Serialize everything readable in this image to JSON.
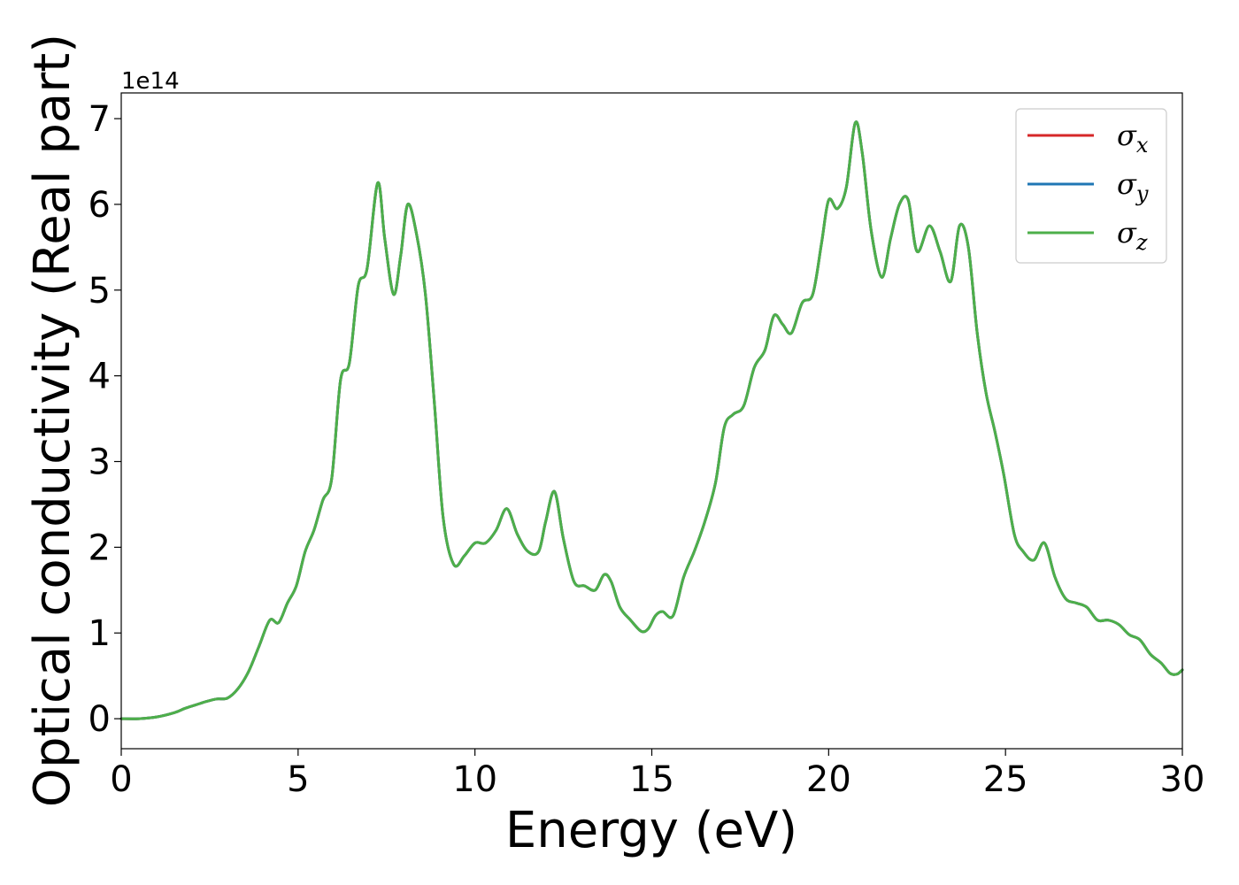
{
  "chart_data": {
    "type": "line",
    "title": "",
    "xlabel": "Energy (eV)",
    "ylabel": "Optical conductivity (Real part)",
    "y_offset_label": "1e14",
    "y_scale_factor": 100000000000000.0,
    "xlim": [
      0,
      30
    ],
    "ylim": [
      -0.35,
      7.3
    ],
    "xticks": [
      0,
      5,
      10,
      15,
      20,
      25,
      30
    ],
    "yticks": [
      0,
      1,
      2,
      3,
      4,
      5,
      6,
      7
    ],
    "grid": false,
    "legend_position": "top-right",
    "x": [
      0,
      0.5,
      1.0,
      1.5,
      1.8,
      2.1,
      2.4,
      2.7,
      3.0,
      3.3,
      3.6,
      3.9,
      4.2,
      4.45,
      4.7,
      4.95,
      5.2,
      5.45,
      5.7,
      5.95,
      6.2,
      6.45,
      6.7,
      6.95,
      7.25,
      7.45,
      7.7,
      7.9,
      8.1,
      8.35,
      8.6,
      8.85,
      9.1,
      9.4,
      9.7,
      10.0,
      10.3,
      10.6,
      10.9,
      11.2,
      11.5,
      11.8,
      12.0,
      12.25,
      12.5,
      12.8,
      13.1,
      13.4,
      13.65,
      13.85,
      14.1,
      14.4,
      14.7,
      14.9,
      15.1,
      15.3,
      15.6,
      15.9,
      16.2,
      16.5,
      16.8,
      17.05,
      17.3,
      17.6,
      17.9,
      18.2,
      18.45,
      18.7,
      18.95,
      19.25,
      19.55,
      19.8,
      20.0,
      20.25,
      20.5,
      20.75,
      20.95,
      21.2,
      21.5,
      21.75,
      22.0,
      22.25,
      22.5,
      22.85,
      23.15,
      23.45,
      23.7,
      23.95,
      24.2,
      24.45,
      24.7,
      24.95,
      25.25,
      25.5,
      25.8,
      26.1,
      26.4,
      26.7,
      27.0,
      27.3,
      27.6,
      27.9,
      28.2,
      28.5,
      28.8,
      29.1,
      29.4,
      29.65,
      29.85,
      30.0
    ],
    "series": [
      {
        "name": "σx",
        "color": "#d62728",
        "values": [
          0.0,
          0.0,
          0.02,
          0.07,
          0.12,
          0.16,
          0.2,
          0.23,
          0.24,
          0.35,
          0.55,
          0.85,
          1.15,
          1.12,
          1.35,
          1.55,
          1.95,
          2.2,
          2.55,
          2.8,
          3.95,
          4.15,
          5.05,
          5.25,
          6.25,
          5.6,
          4.95,
          5.4,
          6.0,
          5.65,
          4.95,
          3.7,
          2.35,
          1.8,
          1.9,
          2.05,
          2.05,
          2.2,
          2.45,
          2.15,
          1.95,
          1.95,
          2.3,
          2.65,
          2.1,
          1.6,
          1.55,
          1.5,
          1.68,
          1.6,
          1.3,
          1.15,
          1.02,
          1.05,
          1.2,
          1.25,
          1.2,
          1.65,
          1.95,
          2.3,
          2.75,
          3.4,
          3.55,
          3.65,
          4.1,
          4.3,
          4.7,
          4.6,
          4.5,
          4.85,
          4.95,
          5.55,
          6.05,
          5.95,
          6.2,
          6.95,
          6.6,
          5.7,
          5.15,
          5.6,
          6.0,
          6.05,
          5.45,
          5.75,
          5.45,
          5.1,
          5.75,
          5.5,
          4.5,
          3.8,
          3.35,
          2.85,
          2.15,
          1.95,
          1.85,
          2.05,
          1.65,
          1.4,
          1.35,
          1.3,
          1.15,
          1.15,
          1.1,
          0.98,
          0.92,
          0.75,
          0.65,
          0.53,
          0.52,
          0.57
        ]
      },
      {
        "name": "σy",
        "color": "#1f77b4",
        "values": [
          0.0,
          0.0,
          0.02,
          0.07,
          0.12,
          0.16,
          0.2,
          0.23,
          0.24,
          0.35,
          0.55,
          0.85,
          1.15,
          1.12,
          1.35,
          1.55,
          1.95,
          2.2,
          2.55,
          2.8,
          3.95,
          4.15,
          5.05,
          5.25,
          6.25,
          5.6,
          4.95,
          5.4,
          6.0,
          5.65,
          4.95,
          3.7,
          2.35,
          1.8,
          1.9,
          2.05,
          2.05,
          2.2,
          2.45,
          2.15,
          1.95,
          1.95,
          2.3,
          2.65,
          2.1,
          1.6,
          1.55,
          1.5,
          1.68,
          1.6,
          1.3,
          1.15,
          1.02,
          1.05,
          1.2,
          1.25,
          1.2,
          1.65,
          1.95,
          2.3,
          2.75,
          3.4,
          3.55,
          3.65,
          4.1,
          4.3,
          4.7,
          4.6,
          4.5,
          4.85,
          4.95,
          5.55,
          6.05,
          5.95,
          6.2,
          6.95,
          6.6,
          5.7,
          5.15,
          5.6,
          6.0,
          6.05,
          5.45,
          5.75,
          5.45,
          5.1,
          5.75,
          5.5,
          4.5,
          3.8,
          3.35,
          2.85,
          2.15,
          1.95,
          1.85,
          2.05,
          1.65,
          1.4,
          1.35,
          1.3,
          1.15,
          1.15,
          1.1,
          0.98,
          0.92,
          0.75,
          0.65,
          0.53,
          0.52,
          0.57
        ]
      },
      {
        "name": "σz",
        "color": "#4daf4a",
        "values": [
          0.0,
          0.0,
          0.02,
          0.07,
          0.12,
          0.16,
          0.2,
          0.23,
          0.24,
          0.35,
          0.55,
          0.85,
          1.15,
          1.12,
          1.35,
          1.55,
          1.95,
          2.2,
          2.55,
          2.8,
          3.95,
          4.15,
          5.05,
          5.25,
          6.25,
          5.6,
          4.95,
          5.4,
          6.0,
          5.65,
          4.95,
          3.7,
          2.35,
          1.8,
          1.9,
          2.05,
          2.05,
          2.2,
          2.45,
          2.15,
          1.95,
          1.95,
          2.3,
          2.65,
          2.1,
          1.6,
          1.55,
          1.5,
          1.68,
          1.6,
          1.3,
          1.15,
          1.02,
          1.05,
          1.2,
          1.25,
          1.2,
          1.65,
          1.95,
          2.3,
          2.75,
          3.4,
          3.55,
          3.65,
          4.1,
          4.3,
          4.7,
          4.6,
          4.5,
          4.85,
          4.95,
          5.55,
          6.05,
          5.95,
          6.2,
          6.95,
          6.6,
          5.7,
          5.15,
          5.6,
          6.0,
          6.05,
          5.45,
          5.75,
          5.45,
          5.1,
          5.75,
          5.5,
          4.5,
          3.8,
          3.35,
          2.85,
          2.15,
          1.95,
          1.85,
          2.05,
          1.65,
          1.4,
          1.35,
          1.3,
          1.15,
          1.15,
          1.1,
          0.98,
          0.92,
          0.75,
          0.65,
          0.53,
          0.52,
          0.57
        ]
      }
    ],
    "legend": [
      {
        "symbol": "σ",
        "subscript": "x",
        "color": "#d62728"
      },
      {
        "symbol": "σ",
        "subscript": "y",
        "color": "#1f77b4"
      },
      {
        "symbol": "σ",
        "subscript": "z",
        "color": "#4daf4a"
      }
    ]
  }
}
